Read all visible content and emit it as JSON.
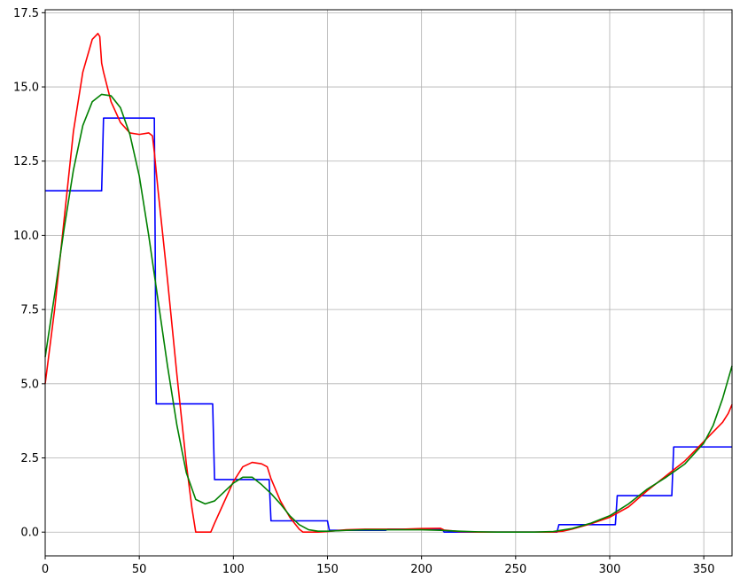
{
  "chart_data": {
    "type": "line",
    "title": "",
    "xlabel": "",
    "ylabel": "",
    "xlim": [
      0,
      365
    ],
    "ylim": [
      -0.8,
      17.6
    ],
    "grid": true,
    "x_ticks": [
      0,
      50,
      100,
      150,
      200,
      250,
      300,
      350
    ],
    "y_ticks": [
      0.0,
      2.5,
      5.0,
      7.5,
      10.0,
      12.5,
      15.0,
      17.5
    ],
    "x_tick_labels": [
      "0",
      "50",
      "100",
      "150",
      "200",
      "250",
      "300",
      "350"
    ],
    "y_tick_labels": [
      "0.0",
      "2.5",
      "5.0",
      "7.5",
      "10.0",
      "12.5",
      "15.0",
      "17.5"
    ],
    "series": [
      {
        "color": "#0000ff",
        "style": "step",
        "x": [
          0,
          30,
          31,
          58,
          59,
          89,
          90,
          119,
          120,
          150,
          151,
          181,
          182,
          211,
          212,
          272,
          273,
          303,
          304,
          333,
          334,
          365
        ],
        "y": [
          11.5,
          11.5,
          13.95,
          13.95,
          4.32,
          4.32,
          1.77,
          1.77,
          0.38,
          0.38,
          0.06,
          0.06,
          0.1,
          0.1,
          0.0,
          0.0,
          0.25,
          0.25,
          1.23,
          1.23,
          2.87,
          2.87
        ]
      },
      {
        "color": "#ff0000",
        "style": "line",
        "x": [
          0,
          5,
          10,
          15,
          20,
          25,
          28,
          29,
          30,
          31,
          35,
          40,
          45,
          50,
          55,
          57,
          58,
          60,
          65,
          70,
          75,
          78,
          80,
          82,
          85,
          88,
          90,
          95,
          100,
          105,
          110,
          115,
          118,
          120,
          125,
          130,
          135,
          137,
          140,
          145,
          150,
          160,
          170,
          180,
          190,
          200,
          210,
          212,
          220,
          230,
          240,
          250,
          260,
          270,
          275,
          280,
          290,
          300,
          310,
          320,
          330,
          340,
          350,
          360,
          363,
          365
        ],
        "y": [
          5.0,
          7.5,
          10.5,
          13.5,
          15.5,
          16.6,
          16.8,
          16.7,
          15.8,
          15.5,
          14.5,
          13.8,
          13.45,
          13.4,
          13.45,
          13.35,
          12.8,
          11.5,
          8.5,
          5.3,
          2.3,
          0.8,
          0.0,
          0.0,
          0.0,
          0.0,
          0.3,
          1.0,
          1.7,
          2.2,
          2.35,
          2.3,
          2.2,
          1.8,
          1.05,
          0.5,
          0.1,
          0.0,
          0.0,
          0.0,
          0.02,
          0.08,
          0.1,
          0.1,
          0.1,
          0.12,
          0.13,
          0.07,
          0.02,
          0.0,
          0.0,
          0.0,
          0.0,
          0.0,
          0.03,
          0.1,
          0.28,
          0.5,
          0.85,
          1.4,
          1.9,
          2.4,
          3.05,
          3.7,
          4.0,
          4.3
        ]
      },
      {
        "color": "#008000",
        "style": "line",
        "x": [
          0,
          5,
          10,
          15,
          20,
          25,
          30,
          35,
          40,
          45,
          50,
          55,
          60,
          65,
          70,
          75,
          80,
          85,
          90,
          95,
          100,
          105,
          110,
          115,
          120,
          125,
          130,
          135,
          140,
          145,
          150,
          160,
          170,
          180,
          190,
          200,
          210,
          220,
          230,
          240,
          250,
          260,
          270,
          280,
          290,
          300,
          310,
          320,
          330,
          340,
          350,
          355,
          360,
          365
        ],
        "y": [
          5.9,
          8.0,
          10.2,
          12.2,
          13.7,
          14.5,
          14.75,
          14.7,
          14.3,
          13.4,
          12.0,
          10.0,
          7.8,
          5.6,
          3.6,
          2.0,
          1.1,
          0.95,
          1.05,
          1.35,
          1.65,
          1.85,
          1.85,
          1.6,
          1.3,
          0.95,
          0.55,
          0.25,
          0.08,
          0.03,
          0.03,
          0.06,
          0.08,
          0.08,
          0.08,
          0.08,
          0.06,
          0.03,
          0.01,
          0.0,
          0.0,
          0.0,
          0.02,
          0.12,
          0.3,
          0.55,
          0.95,
          1.45,
          1.85,
          2.3,
          3.0,
          3.6,
          4.5,
          5.6
        ]
      }
    ]
  }
}
